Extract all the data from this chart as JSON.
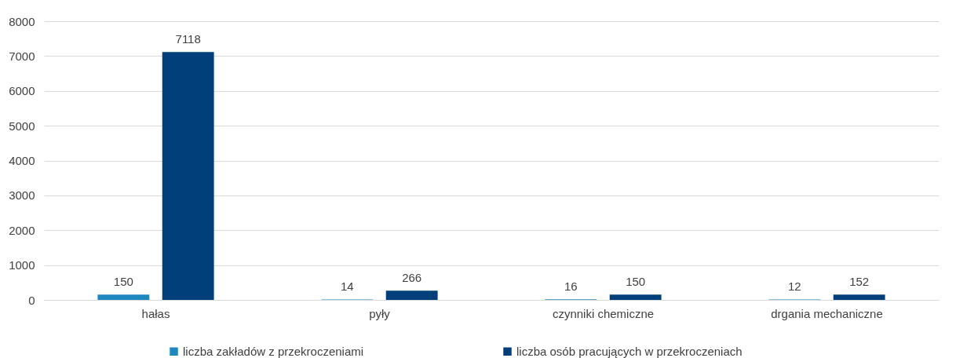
{
  "chart_data": {
    "type": "bar",
    "categories": [
      "hałas",
      "pyły",
      "czynniki chemiczne",
      "drgania mechaniczne"
    ],
    "series": [
      {
        "name": "liczba zakładów z przekroczeniami",
        "color": "#1f87c0",
        "values": [
          150,
          14,
          16,
          12
        ]
      },
      {
        "name": "liczba osób pracujących w przekroczeniach",
        "color": "#003f7a",
        "values": [
          7118,
          266,
          150,
          152
        ]
      }
    ],
    "ylim": [
      0,
      8000
    ],
    "yticks": [
      0,
      1000,
      2000,
      3000,
      4000,
      5000,
      6000,
      7000,
      8000
    ],
    "grid": "y",
    "legend": "bottom",
    "data_labels": true
  }
}
